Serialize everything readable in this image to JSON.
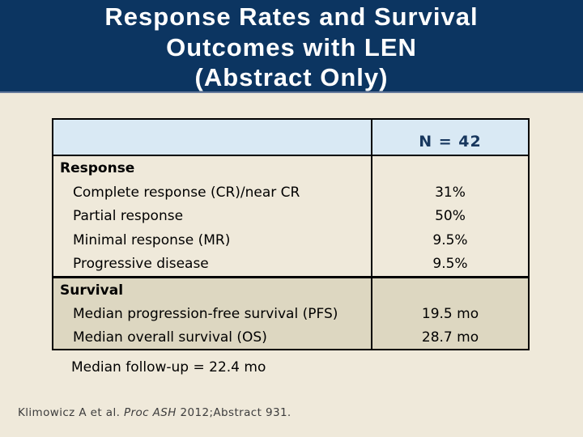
{
  "title": {
    "line1": "Response Rates and Survival",
    "line2": "Outcomes with LEN",
    "line3": "(Abstract Only)"
  },
  "table": {
    "header": {
      "n_value": "N = 42"
    },
    "response": {
      "section_label": "Response",
      "rows": [
        {
          "label": "Complete response (CR)/near CR",
          "value": "31%"
        },
        {
          "label": "Partial response",
          "value": "50%"
        },
        {
          "label": "Minimal response (MR)",
          "value": "9.5%"
        },
        {
          "label": "Progressive disease",
          "value": "9.5%"
        }
      ]
    },
    "survival": {
      "section_label": "Survival",
      "rows": [
        {
          "label": "Median progression-free survival (PFS)",
          "value": "19.5 mo"
        },
        {
          "label": "Median overall survival (OS)",
          "value": "28.7 mo"
        }
      ]
    }
  },
  "notes": {
    "followup": "Median follow-up = 22.4 mo"
  },
  "citation": {
    "part1": "Klimowicz A et al. ",
    "italic": "Proc ASH",
    "part2": " 2012;Abstract 931."
  },
  "colors": {
    "header_navy": "#0C3561",
    "body_cream": "#EFE9DA",
    "table_header_blue": "#D9E9F4",
    "survival_tan": "#DDD7C1",
    "n_value_navy": "#17375E"
  }
}
